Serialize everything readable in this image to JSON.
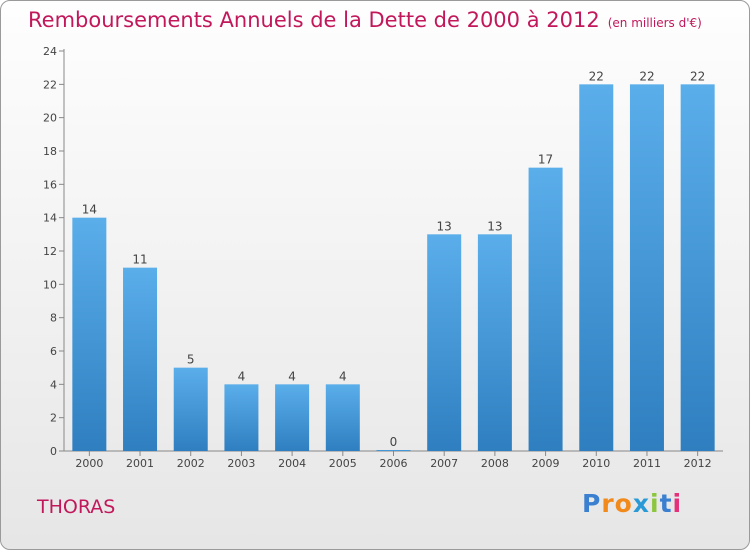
{
  "header": {
    "title": "Remboursements Annuels de la Dette de 2000 à 2012",
    "unit": "(en milliers d'€)"
  },
  "footer": {
    "place": "THORAS",
    "logo_letters": [
      "P",
      "r",
      "o",
      "x",
      "i",
      "t",
      "i"
    ]
  },
  "colors": {
    "title": "#c2185b",
    "bar_top": "#5aaeea",
    "bar_bottom": "#2f7fc0"
  },
  "chart_data": {
    "type": "bar",
    "title": "Remboursements Annuels de la Dette de 2000 à 2012",
    "subtitle": "(en milliers d'€)",
    "xlabel": "",
    "ylabel": "",
    "categories": [
      "2000",
      "2001",
      "2002",
      "2003",
      "2004",
      "2005",
      "2006",
      "2007",
      "2008",
      "2009",
      "2010",
      "2011",
      "2012"
    ],
    "values": [
      14,
      11,
      5,
      4,
      4,
      4,
      0,
      13,
      13,
      17,
      22,
      22,
      22
    ],
    "ylim": [
      0,
      24
    ],
    "yticks": [
      0,
      2,
      4,
      6,
      8,
      10,
      12,
      14,
      16,
      18,
      20,
      22,
      24
    ],
    "grid": false,
    "data_labels": true
  }
}
